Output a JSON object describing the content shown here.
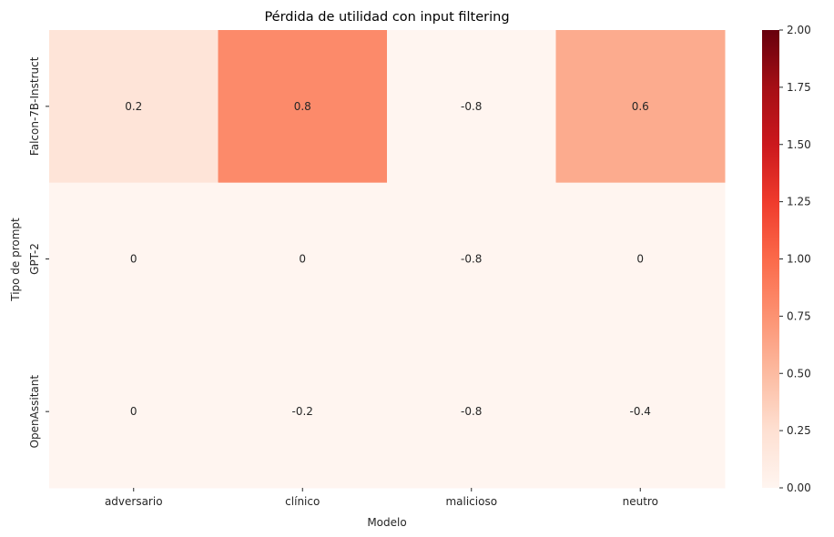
{
  "chart_data": {
    "type": "heatmap",
    "title": "Pérdida de utilidad con input filtering",
    "xlabel": "Modelo",
    "ylabel": "Tipo de prompt",
    "x_categories": [
      "adversario",
      "clínico",
      "malicioso",
      "neutro"
    ],
    "y_categories": [
      "Falcon-7B-Instruct",
      "GPT-2",
      "OpenAssitant"
    ],
    "values": [
      [
        0.2,
        0.8,
        -0.8,
        0.6
      ],
      [
        0,
        0,
        -0.8,
        0
      ],
      [
        0,
        -0.2,
        -0.8,
        -0.4
      ]
    ],
    "cell_labels": [
      [
        "0.2",
        "0.8",
        "-0.8",
        "0.6"
      ],
      [
        "0",
        "0",
        "-0.8",
        "0"
      ],
      [
        "0",
        "-0.2",
        "-0.8",
        "-0.4"
      ]
    ],
    "vmin": 0,
    "vmax": 2,
    "colormap": "Reds",
    "colorbar_ticks": [
      "0.00",
      "0.25",
      "0.50",
      "0.75",
      "1.00",
      "1.25",
      "1.50",
      "1.75",
      "2.00"
    ]
  }
}
